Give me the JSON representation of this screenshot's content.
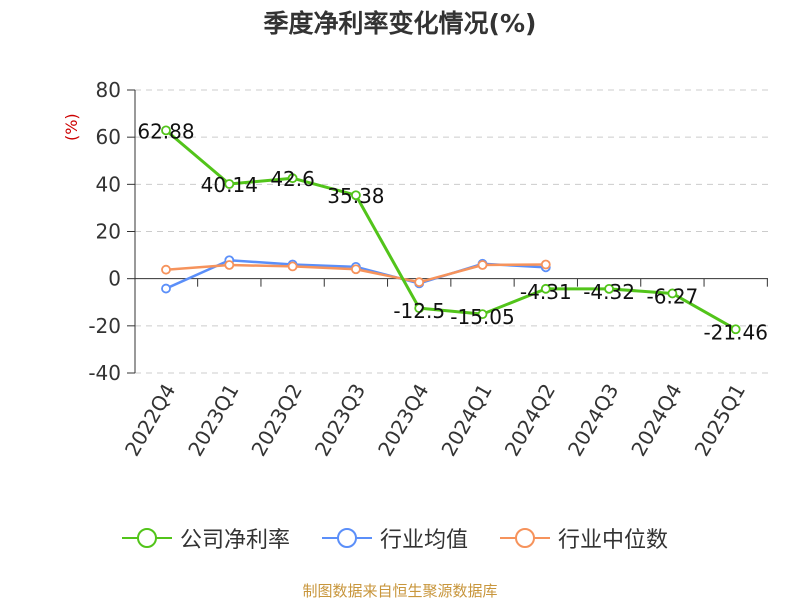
{
  "title": "季度净利率变化情况(%)",
  "source_label": "制图数据来自恒生聚源数据库",
  "colors": {
    "company": "#52c41a",
    "industry_avg": "#5b8ff9",
    "industry_median": "#f6935c",
    "grid": "#cccccc",
    "axis": "#333333",
    "unit": "#cc0000"
  },
  "chart_data": {
    "type": "line",
    "title": "季度净利率变化情况(%)",
    "ylabel": "(%)",
    "xlabel": "",
    "ylim": [
      -40,
      80
    ],
    "yticks": [
      80,
      60,
      40,
      20,
      0,
      -20,
      -40
    ],
    "grid": true,
    "legend_position": "bottom",
    "categories": [
      "2022Q4",
      "2023Q1",
      "2023Q2",
      "2023Q3",
      "2023Q4",
      "2024Q1",
      "2024Q2",
      "2024Q3",
      "2024Q4",
      "2025Q1"
    ],
    "series": [
      {
        "name": "公司净利率",
        "color": "#52c41a",
        "values": [
          62.88,
          40.14,
          42.6,
          35.38,
          -12.5,
          -15.05,
          -4.31,
          -4.32,
          -6.27,
          -21.46
        ],
        "labels": [
          "62.88",
          "40.14",
          "42.6",
          "35.38",
          "-12.5",
          "-15.05",
          "-4.31",
          "-4.32",
          "-6.27",
          "-21.46"
        ]
      },
      {
        "name": "行业均值",
        "color": "#5b8ff9",
        "values": [
          -4.2,
          7.8,
          6.0,
          5.0,
          -2.0,
          6.3,
          4.8,
          null,
          null,
          null
        ]
      },
      {
        "name": "行业中位数",
        "color": "#f6935c",
        "values": [
          3.8,
          5.8,
          5.2,
          4.0,
          -1.5,
          5.8,
          6.0,
          null,
          null,
          null
        ]
      }
    ]
  }
}
